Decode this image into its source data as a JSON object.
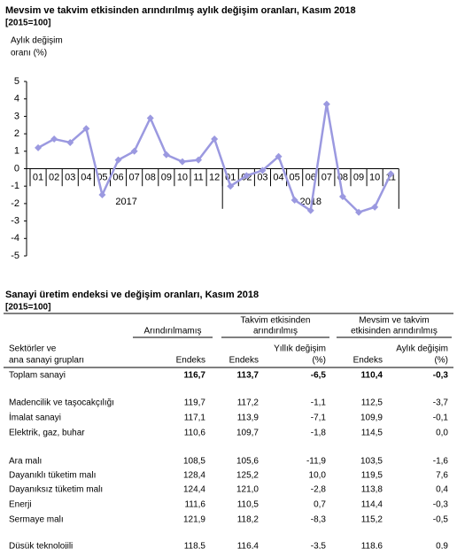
{
  "chart_data": {
    "type": "line",
    "title": "Mevsim ve takvim etkisinden arındırılmış aylık değişim oranları, Kasım 2018",
    "subtitle": "[2015=100]",
    "ylabel": [
      "Aylık değişim",
      "oranı (%)"
    ],
    "categories": [
      "01",
      "02",
      "03",
      "04",
      "05",
      "06",
      "07",
      "08",
      "09",
      "10",
      "11",
      "12",
      "01",
      "02",
      "03",
      "04",
      "05",
      "06",
      "07",
      "08",
      "09",
      "10",
      "11"
    ],
    "groups": [
      {
        "label": "2017",
        "size": 12
      },
      {
        "label": "2018",
        "size": 11
      }
    ],
    "values": [
      1.2,
      1.7,
      1.5,
      2.3,
      -1.5,
      0.5,
      1.0,
      2.9,
      0.8,
      0.4,
      0.5,
      1.7,
      -1.0,
      -0.4,
      -0.1,
      0.7,
      -1.8,
      -2.4,
      3.7,
      -1.6,
      -2.5,
      -2.2,
      -0.3
    ],
    "color": "#9b99e0",
    "ylim": [
      -5,
      5
    ],
    "yticks": [
      -5,
      -4,
      -3,
      -2,
      -1,
      0,
      1,
      2,
      3,
      4,
      5
    ]
  },
  "table": {
    "title": "Sanayi üretim endeksi ve değişim oranları, Kasım 2018",
    "subtitle": "[2015=100]",
    "groups": [
      "Arındırılmamış",
      [
        "Takvim etkisinden",
        "arındırılmış"
      ],
      [
        "Mevsim ve takvim",
        "etkisinden arındırılmış"
      ]
    ],
    "headers": [
      [
        "Sektörler ve",
        "ana sanayi grupları"
      ],
      [
        "Endeks"
      ],
      [
        "Endeks"
      ],
      [
        "Yıllık değişim",
        "(%)"
      ],
      [
        "Endeks"
      ],
      [
        "Aylık değişim",
        "(%)"
      ]
    ],
    "rows": [
      [
        "Toplam sanayi",
        "116,7",
        "113,7",
        "-6,5",
        "110,4",
        "-0,3"
      ],
      [
        "Madencilik ve taşocakçılığı",
        "119,7",
        "117,2",
        "-1,1",
        "112,5",
        "-3,7"
      ],
      [
        "İmalat sanayi",
        "117,1",
        "113,9",
        "-7,1",
        "109,9",
        "-0,1"
      ],
      [
        "Elektrik, gaz, buhar",
        "110,6",
        "109,7",
        "-1,8",
        "114,5",
        "0,0"
      ],
      [
        "Ara malı",
        "108,5",
        "105,6",
        "-11,9",
        "103,5",
        "-1,6"
      ],
      [
        "Dayanıklı tüketim malı",
        "128,4",
        "125,2",
        "10,0",
        "119,5",
        "7,6"
      ],
      [
        "Dayanıksız tüketim malı",
        "124,4",
        "121,0",
        "-2,8",
        "113,8",
        "0,4"
      ],
      [
        "Enerji",
        "111,6",
        "110,5",
        "0,7",
        "114,4",
        "-0,3"
      ],
      [
        "Sermaye malı",
        "121,9",
        "118,2",
        "-8,3",
        "115,2",
        "-0,5"
      ],
      [
        "Düşük teknolojili",
        "118,5",
        "116,4",
        "-3,5",
        "118,6",
        "0,9"
      ]
    ]
  }
}
